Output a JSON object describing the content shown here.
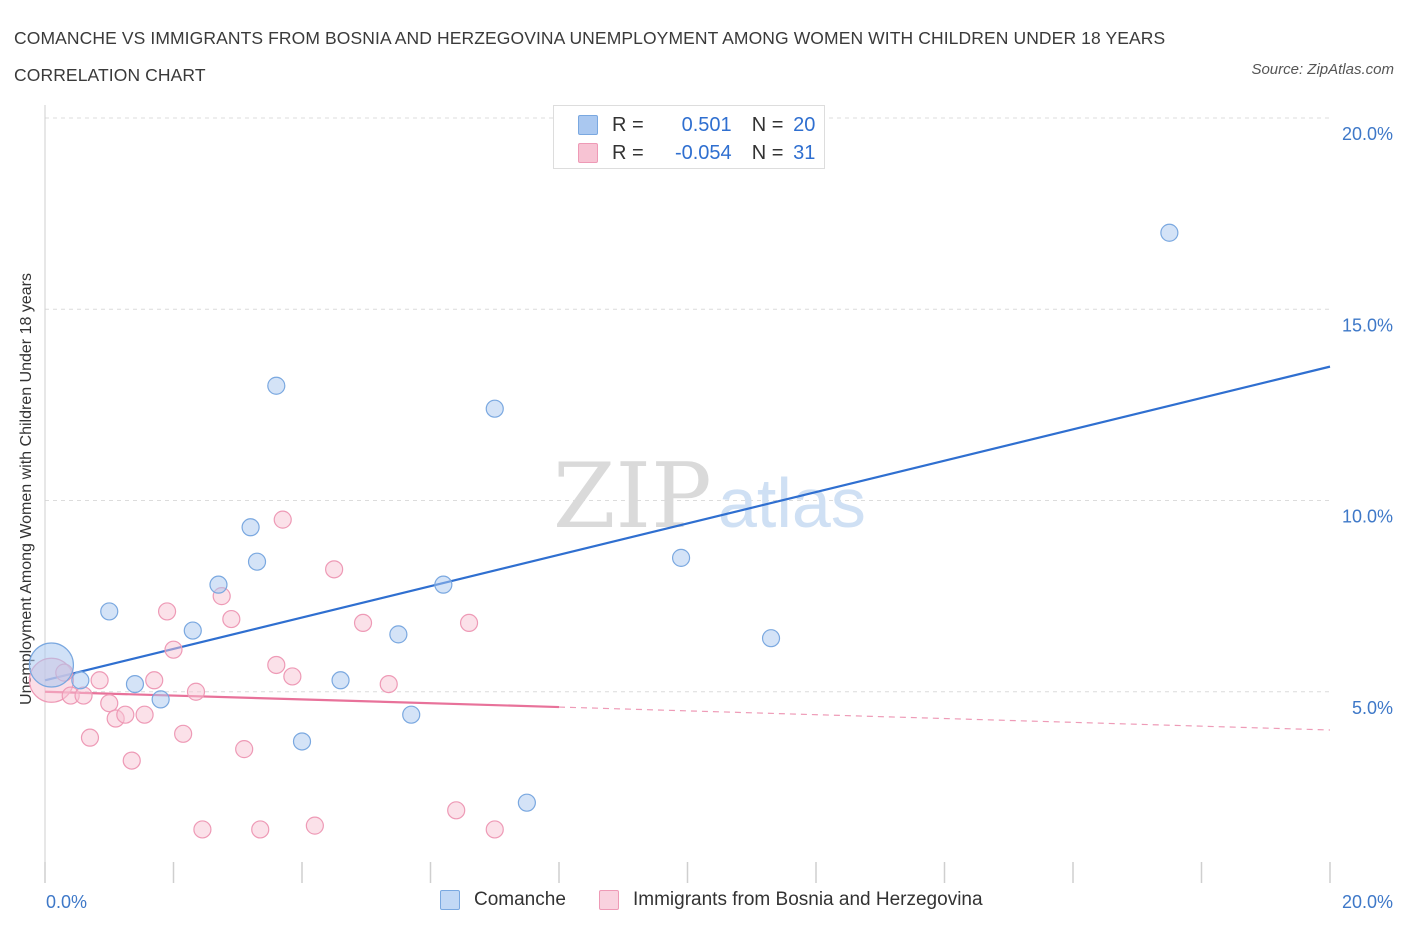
{
  "title": "COMANCHE VS IMMIGRANTS FROM BOSNIA AND HERZEGOVINA UNEMPLOYMENT AMONG WOMEN WITH CHILDREN UNDER 18 YEARS CORRELATION CHART",
  "source": "Source: ZipAtlas.com",
  "watermark": {
    "zip": "ZIP",
    "atlas": "atlas"
  },
  "legend": {
    "rows": [
      {
        "r_label": "R =",
        "r_value": "0.501",
        "n_label": "N =",
        "n_value": "20",
        "color": "#aac8f0",
        "border": "#7aa8e0"
      },
      {
        "r_label": "R =",
        "r_value": "-0.054",
        "n_label": "N =",
        "n_value": "31",
        "color": "#f7c3d3",
        "border": "#ee9ab6"
      }
    ]
  },
  "bottom_legend": [
    {
      "label": "Comanche",
      "color": "#c2d8f5",
      "border": "#7aa8e0"
    },
    {
      "label": "Immigrants from Bosnia and Herzegovina",
      "color": "#f9d2df",
      "border": "#ee9ab6"
    }
  ],
  "chart_data": {
    "type": "scatter",
    "title": "COMANCHE VS IMMIGRANTS FROM BOSNIA AND HERZEGOVINA UNEMPLOYMENT AMONG WOMEN WITH CHILDREN UNDER 18 YEARS CORRELATION CHART",
    "xlabel": "",
    "ylabel": "Unemployment Among Women with Children Under 18 years",
    "xlim": [
      0,
      20
    ],
    "ylim": [
      0,
      20
    ],
    "x_tick_labels": [
      "0.0%",
      "20.0%"
    ],
    "y_tick_labels": [
      "5.0%",
      "10.0%",
      "15.0%",
      "20.0%"
    ],
    "y_ticks": [
      5,
      10,
      15,
      20
    ],
    "grid": true,
    "legend_position": "top-center",
    "series": [
      {
        "name": "Comanche",
        "color": "#aac8f0",
        "stroke": "#7aa8e0",
        "trend_color": "#2f6fd0",
        "trend": {
          "x0": 0,
          "y0": 5.3,
          "x1": 20,
          "y1": 13.5,
          "dashed_from": null
        },
        "points": [
          [
            0.1,
            5.7,
            "large"
          ],
          [
            0.55,
            5.3
          ],
          [
            1.0,
            7.1
          ],
          [
            1.4,
            5.2
          ],
          [
            1.8,
            4.8
          ],
          [
            2.3,
            6.6
          ],
          [
            2.7,
            7.8
          ],
          [
            3.2,
            9.3
          ],
          [
            3.3,
            8.4
          ],
          [
            3.6,
            13.0
          ],
          [
            4.0,
            3.7
          ],
          [
            4.6,
            5.3
          ],
          [
            5.5,
            6.5
          ],
          [
            5.7,
            4.4
          ],
          [
            6.2,
            7.8
          ],
          [
            7.0,
            12.4
          ],
          [
            7.5,
            2.1
          ],
          [
            9.9,
            8.5
          ],
          [
            11.3,
            6.4
          ],
          [
            17.5,
            17.0
          ]
        ]
      },
      {
        "name": "Immigrants from Bosnia and Herzegovina",
        "color": "#f7c3d3",
        "stroke": "#ee9ab6",
        "trend_color": "#e8729a",
        "trend": {
          "x0": 0,
          "y0": 5.0,
          "x1": 20,
          "y1": 4.0,
          "dashed_from": 8
        },
        "points": [
          [
            0.1,
            5.3,
            "large"
          ],
          [
            0.3,
            5.5
          ],
          [
            0.4,
            4.9
          ],
          [
            0.6,
            4.9
          ],
          [
            0.7,
            3.8
          ],
          [
            0.85,
            5.3
          ],
          [
            1.0,
            4.7
          ],
          [
            1.1,
            4.3
          ],
          [
            1.25,
            4.4
          ],
          [
            1.55,
            4.4
          ],
          [
            1.7,
            5.3
          ],
          [
            1.9,
            7.1
          ],
          [
            2.0,
            6.1
          ],
          [
            2.15,
            3.9
          ],
          [
            2.35,
            5.0
          ],
          [
            2.45,
            1.4
          ],
          [
            2.75,
            7.5
          ],
          [
            2.9,
            6.9
          ],
          [
            3.1,
            3.5
          ],
          [
            3.35,
            1.4
          ],
          [
            3.6,
            5.7
          ],
          [
            3.7,
            9.5
          ],
          [
            3.85,
            5.4
          ],
          [
            4.2,
            1.5
          ],
          [
            4.5,
            8.2
          ],
          [
            4.95,
            6.8
          ],
          [
            5.35,
            5.2
          ],
          [
            6.4,
            1.9
          ],
          [
            6.6,
            6.8
          ],
          [
            7.0,
            1.4
          ],
          [
            1.35,
            3.2
          ]
        ]
      }
    ]
  }
}
